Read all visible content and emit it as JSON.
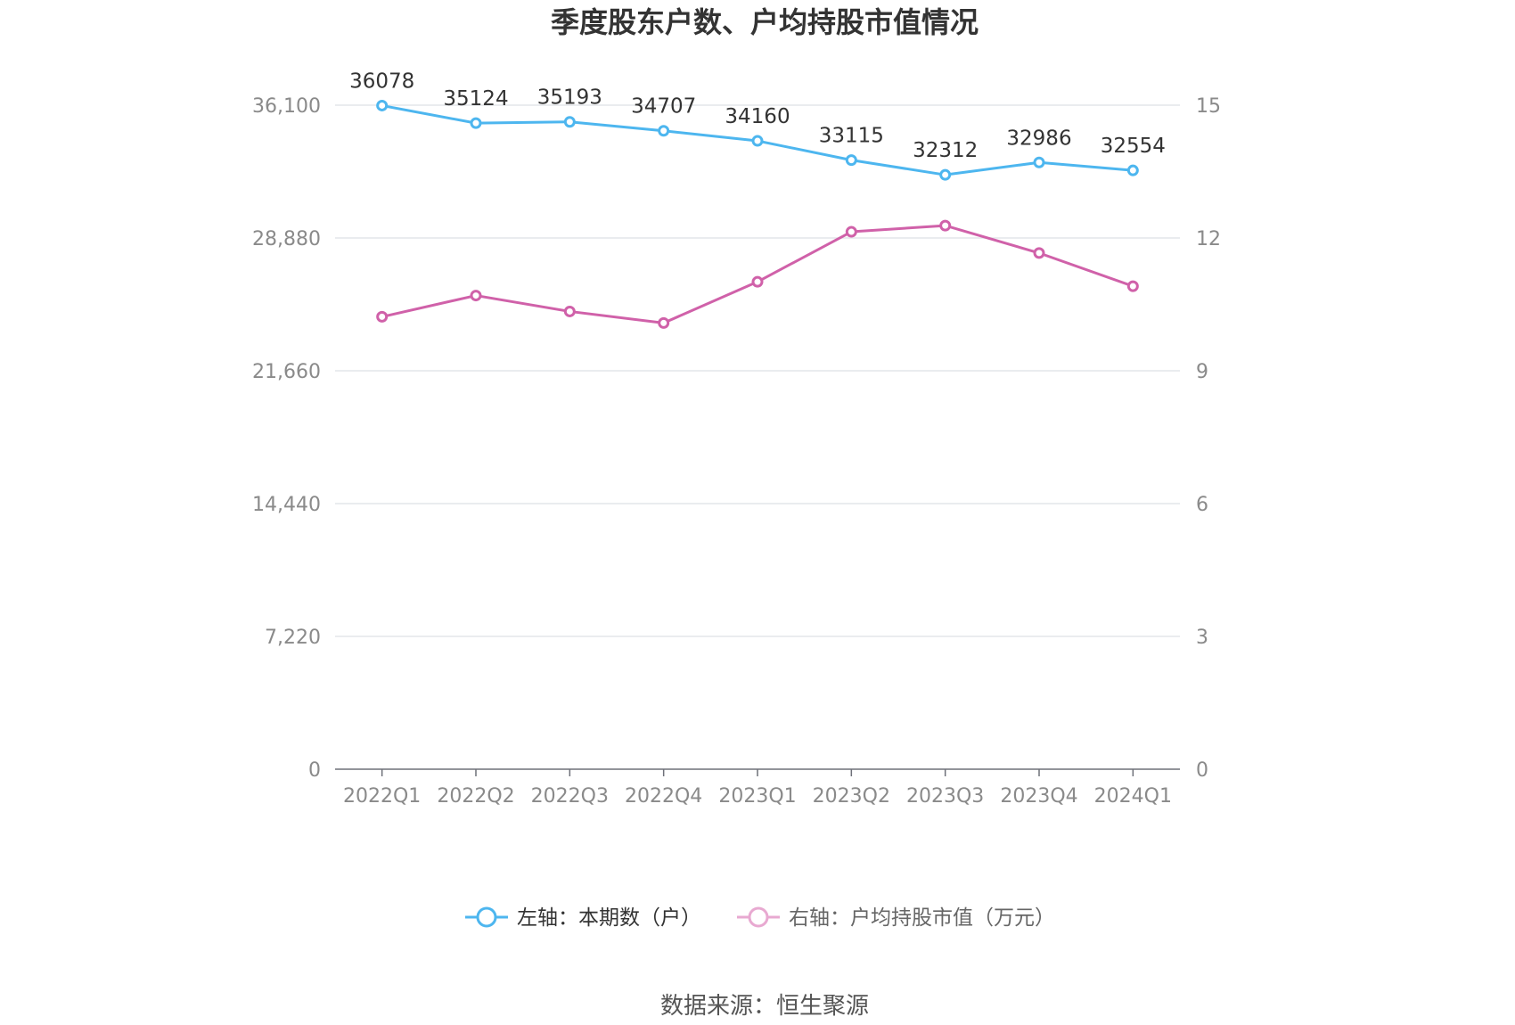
{
  "chart_data": {
    "type": "line",
    "title": "季度股东户数、户均持股市值情况",
    "categories": [
      "2022Q1",
      "2022Q2",
      "2022Q3",
      "2022Q4",
      "2023Q1",
      "2023Q2",
      "2023Q3",
      "2023Q4",
      "2024Q1"
    ],
    "left_axis": {
      "ylim": [
        0,
        36100
      ],
      "ticks": [
        "0",
        "7,220",
        "14,440",
        "21,660",
        "28,880",
        "36,100"
      ]
    },
    "right_axis": {
      "ylim": [
        0,
        15
      ],
      "ticks": [
        "0",
        "3",
        "6",
        "9",
        "12",
        "15"
      ]
    },
    "series": [
      {
        "name": "左轴：本期数（户）",
        "axis": "left",
        "color": "#4db6ef",
        "values": [
          36078,
          35124,
          35193,
          34707,
          34160,
          33115,
          32312,
          32986,
          32554
        ],
        "data_labels": [
          "36078",
          "35124",
          "35193",
          "34707",
          "34160",
          "33115",
          "32312",
          "32986",
          "32554"
        ]
      },
      {
        "name": "右轴：户均持股市值（万元）",
        "axis": "right",
        "color": "#d061a9",
        "legend_color": "#e8a9d1",
        "values": [
          10.22,
          10.7,
          10.34,
          10.08,
          11.01,
          12.14,
          12.28,
          11.66,
          10.91
        ]
      }
    ],
    "grid": true,
    "legend_position": "bottom"
  },
  "source": "数据来源：恒生聚源"
}
